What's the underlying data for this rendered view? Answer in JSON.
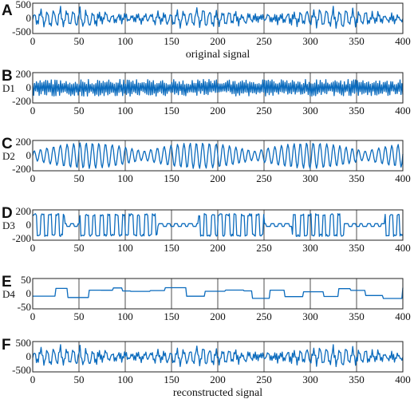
{
  "figure": {
    "line_color": "#0b6bbd",
    "axis_color": "#222222"
  },
  "chart_data": [
    {
      "panel": "A",
      "type": "line",
      "ylabel": "",
      "xlabel": "original signal",
      "xlim": [
        0,
        400
      ],
      "ylim": [
        -500,
        500
      ],
      "xticks": [
        0,
        50,
        100,
        150,
        200,
        250,
        300,
        350,
        400
      ],
      "xtick_labels": [
        "0",
        "50",
        "100",
        "150",
        "200",
        "250",
        "300",
        "350",
        "400"
      ],
      "yticks": [
        -500,
        0,
        500
      ],
      "ytick_labels": [
        "-500",
        "0",
        "500"
      ],
      "grid": "vertical lines at x ticks",
      "signal": {
        "kind": "sum-of-components",
        "approx_amplitude": 300,
        "dominant_period": 7
      }
    },
    {
      "panel": "B",
      "type": "line",
      "ylabel": "D1",
      "xlabel": "",
      "xlim": [
        0,
        400
      ],
      "ylim": [
        -200,
        200
      ],
      "xticks": [
        0,
        50,
        100,
        150,
        200,
        250,
        300,
        350,
        400
      ],
      "xtick_labels": [
        "0",
        "50",
        "100",
        "150",
        "200",
        "250",
        "300",
        "350",
        "400"
      ],
      "yticks": [
        -200,
        0,
        200
      ],
      "ytick_labels": [
        "-200",
        "0",
        "200"
      ],
      "grid": "vertical lines at x ticks",
      "signal": {
        "kind": "high-frequency noise",
        "approx_amplitude": 110,
        "dominant_period": 2
      }
    },
    {
      "panel": "C",
      "type": "line",
      "ylabel": "D2",
      "xlabel": "",
      "xlim": [
        0,
        400
      ],
      "ylim": [
        -200,
        200
      ],
      "xticks": [
        0,
        50,
        100,
        150,
        200,
        250,
        300,
        350,
        400
      ],
      "xtick_labels": [
        "0",
        "50",
        "100",
        "150",
        "200",
        "250",
        "300",
        "350",
        "400"
      ],
      "yticks": [
        -200,
        0,
        200
      ],
      "ytick_labels": [
        "-200",
        "0",
        "200"
      ],
      "grid": "vertical lines at x ticks",
      "signal": {
        "kind": "oscillation with bursts",
        "approx_amplitude": 170,
        "dominant_period": 7
      }
    },
    {
      "panel": "D",
      "type": "line",
      "ylabel": "D3",
      "xlabel": "",
      "xlim": [
        0,
        400
      ],
      "ylim": [
        -200,
        200
      ],
      "xticks": [
        0,
        50,
        100,
        150,
        200,
        250,
        300,
        350,
        400
      ],
      "xtick_labels": [
        "0",
        "50",
        "100",
        "150",
        "200",
        "250",
        "300",
        "350",
        "400"
      ],
      "yticks": [
        -200,
        0,
        200
      ],
      "ytick_labels": [
        "-200",
        "0",
        "200"
      ],
      "grid": "vertical lines at x ticks",
      "signal": {
        "kind": "square-wave bursts",
        "approx_amplitude": 150,
        "dominant_period": 8
      }
    },
    {
      "panel": "E",
      "type": "line",
      "ylabel": "D4",
      "xlabel": "",
      "xlim": [
        0,
        400
      ],
      "ylim": [
        -50,
        50
      ],
      "xticks": [
        0,
        50,
        100,
        150,
        200,
        250,
        300,
        350,
        400
      ],
      "xtick_labels": [
        "0",
        "50",
        "100",
        "150",
        "200",
        "250",
        "300",
        "350",
        "400"
      ],
      "yticks": [
        -50,
        0,
        50
      ],
      "ytick_labels": [
        "-50",
        "0",
        "50"
      ],
      "grid": "vertical lines at x ticks",
      "signal": {
        "kind": "low-frequency steps",
        "approx_amplitude": 20,
        "dominant_period": 32
      }
    },
    {
      "panel": "F",
      "type": "line",
      "ylabel": "",
      "xlabel": "reconstructed signal",
      "xlim": [
        0,
        400
      ],
      "ylim": [
        -500,
        500
      ],
      "xticks": [
        0,
        50,
        100,
        150,
        200,
        250,
        300,
        350,
        400
      ],
      "xtick_labels": [
        "0",
        "50",
        "100",
        "150",
        "200",
        "250",
        "300",
        "350",
        "400"
      ],
      "yticks": [
        -500,
        0,
        500
      ],
      "ytick_labels": [
        "-500",
        "0",
        "500"
      ],
      "grid": "vertical lines at x ticks",
      "signal": {
        "kind": "sum-of-components",
        "approx_amplitude": 300,
        "dominant_period": 7
      }
    }
  ]
}
